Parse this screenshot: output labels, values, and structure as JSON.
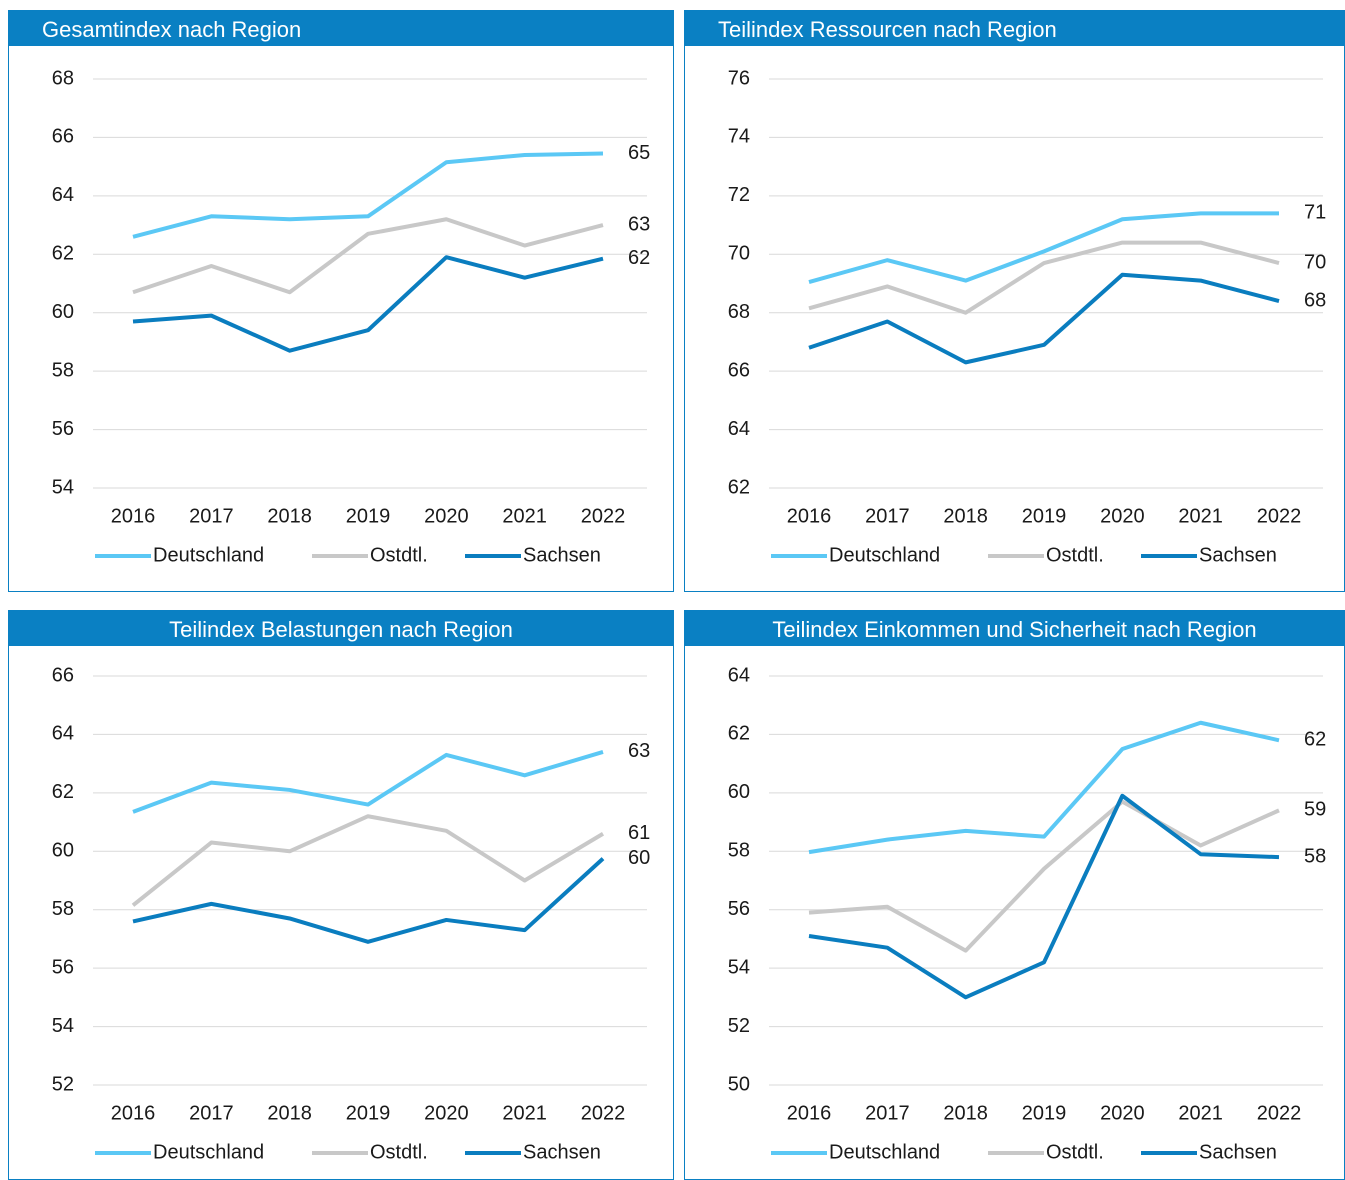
{
  "chart_data": [
    {
      "type": "line",
      "title": "Gesamtindex nach Region",
      "categories": [
        "2016",
        "2017",
        "2018",
        "2019",
        "2020",
        "2021",
        "2022"
      ],
      "ylim": [
        54,
        68
      ],
      "yticks": [
        54,
        56,
        58,
        60,
        62,
        64,
        66,
        68
      ],
      "grid": true,
      "legend": "bottom",
      "series": [
        {
          "name": "Deutschland",
          "color": "#5bc8f5",
          "values": [
            62.6,
            63.3,
            63.2,
            63.3,
            65.15,
            65.4,
            65.45
          ],
          "value_labels": [
            null,
            null,
            null,
            null,
            null,
            null,
            "65"
          ]
        },
        {
          "name": "Ostdtl.",
          "color": "#c8c8c8",
          "values": [
            60.7,
            61.6,
            60.7,
            62.7,
            63.2,
            62.3,
            63.0
          ],
          "value_labels": [
            null,
            null,
            null,
            null,
            null,
            null,
            "63"
          ]
        },
        {
          "name": "Sachsen",
          "color": "#0a7dbf",
          "values": [
            59.7,
            59.9,
            58.7,
            59.4,
            61.9,
            61.2,
            61.85
          ],
          "value_labels": [
            null,
            null,
            null,
            null,
            null,
            null,
            "62"
          ]
        }
      ]
    },
    {
      "type": "line",
      "title": "Teilindex Ressourcen nach Region",
      "categories": [
        "2016",
        "2017",
        "2018",
        "2019",
        "2020",
        "2021",
        "2022"
      ],
      "ylim": [
        62,
        76
      ],
      "yticks": [
        62,
        64,
        66,
        68,
        70,
        72,
        74,
        76
      ],
      "grid": true,
      "legend": "bottom",
      "series": [
        {
          "name": "Deutschland",
          "color": "#5bc8f5",
          "values": [
            69.05,
            69.8,
            69.1,
            70.1,
            71.2,
            71.4,
            71.4
          ],
          "value_labels": [
            null,
            null,
            null,
            null,
            null,
            null,
            "71"
          ]
        },
        {
          "name": "Ostdtl.",
          "color": "#c8c8c8",
          "values": [
            68.15,
            68.9,
            68.0,
            69.7,
            70.4,
            70.4,
            69.7
          ],
          "value_labels": [
            null,
            null,
            null,
            null,
            null,
            null,
            "70"
          ]
        },
        {
          "name": "Sachsen",
          "color": "#0a7dbf",
          "values": [
            66.8,
            67.7,
            66.3,
            66.9,
            69.3,
            69.1,
            68.4
          ],
          "value_labels": [
            null,
            null,
            null,
            null,
            null,
            null,
            "68"
          ]
        }
      ]
    },
    {
      "type": "line",
      "title": "Teilindex Belastungen nach Region",
      "categories": [
        "2016",
        "2017",
        "2018",
        "2019",
        "2020",
        "2021",
        "2022"
      ],
      "ylim": [
        52,
        66
      ],
      "yticks": [
        52,
        54,
        56,
        58,
        60,
        62,
        64,
        66
      ],
      "grid": true,
      "legend": "bottom",
      "series": [
        {
          "name": "Deutschland",
          "color": "#5bc8f5",
          "values": [
            61.35,
            62.35,
            62.1,
            61.6,
            63.3,
            62.6,
            63.4
          ],
          "value_labels": [
            null,
            null,
            null,
            null,
            null,
            null,
            "63"
          ]
        },
        {
          "name": "Ostdtl.",
          "color": "#c8c8c8",
          "values": [
            58.15,
            60.3,
            60.0,
            61.2,
            60.7,
            59.0,
            60.6
          ],
          "value_labels": [
            null,
            null,
            null,
            null,
            null,
            null,
            "61"
          ]
        },
        {
          "name": "Sachsen",
          "color": "#0a7dbf",
          "values": [
            57.6,
            58.2,
            57.7,
            56.9,
            57.65,
            57.3,
            59.75
          ],
          "value_labels": [
            null,
            null,
            null,
            null,
            null,
            null,
            "60"
          ]
        }
      ]
    },
    {
      "type": "line",
      "title": "Teilindex Einkommen und Sicherheit nach Region",
      "categories": [
        "2016",
        "2017",
        "2018",
        "2019",
        "2020",
        "2021",
        "2022"
      ],
      "ylim": [
        50,
        64
      ],
      "yticks": [
        50,
        52,
        54,
        56,
        58,
        60,
        62,
        64
      ],
      "grid": true,
      "legend": "bottom",
      "series": [
        {
          "name": "Deutschland",
          "color": "#5bc8f5",
          "values": [
            57.97,
            58.4,
            58.7,
            58.5,
            61.5,
            62.4,
            61.8
          ],
          "value_labels": [
            null,
            null,
            null,
            null,
            null,
            null,
            "62"
          ]
        },
        {
          "name": "Ostdtl.",
          "color": "#c8c8c8",
          "values": [
            55.9,
            56.1,
            54.6,
            57.4,
            59.7,
            58.2,
            59.4
          ],
          "value_labels": [
            null,
            null,
            null,
            null,
            null,
            null,
            "59"
          ]
        },
        {
          "name": "Sachsen",
          "color": "#0a7dbf",
          "values": [
            55.1,
            54.7,
            53.0,
            54.2,
            59.9,
            57.9,
            57.8
          ],
          "value_labels": [
            null,
            null,
            null,
            null,
            null,
            null,
            "58"
          ]
        }
      ]
    }
  ]
}
